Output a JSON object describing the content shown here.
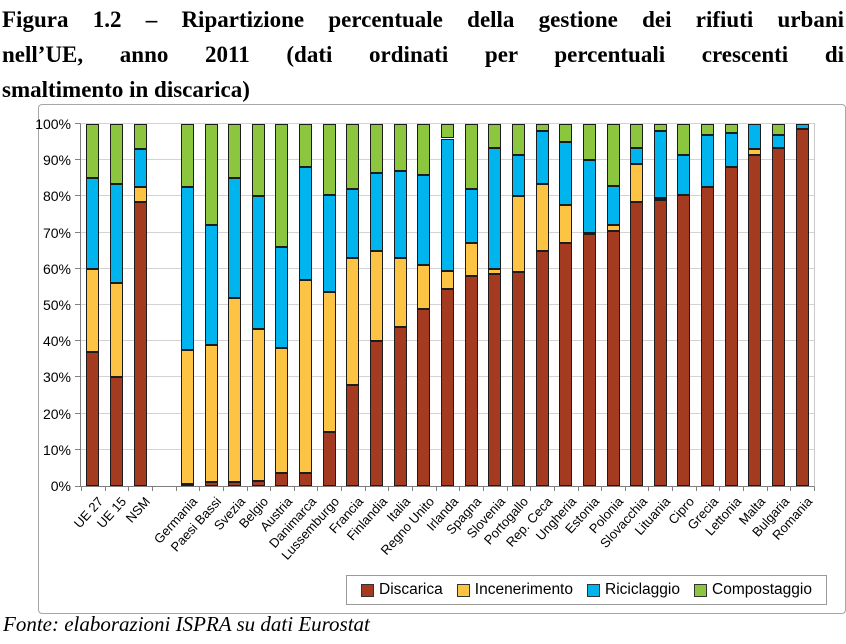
{
  "figure": {
    "title_lines": [
      "Figura 1.2 – Ripartizione percentuale della gestione dei rifiuti urbani",
      "nell’UE, anno 2011 (dati ordinati per percentuali crescenti di",
      "smaltimento in discarica)"
    ],
    "footer": "Fonte: elaborazioni ISPRA su dati Eurostat"
  },
  "chart_data": {
    "type": "bar",
    "stacked": true,
    "unit": "percent",
    "title": "Ripartizione percentuale della gestione dei rifiuti urbani nell'UE, anno 2011",
    "xlabel": "",
    "ylabel": "",
    "ylim": [
      0,
      100
    ],
    "grid": true,
    "legend_position": "bottom",
    "yticks": [
      "0%",
      "10%",
      "20%",
      "30%",
      "40%",
      "50%",
      "60%",
      "70%",
      "80%",
      "90%",
      "100%"
    ],
    "gap_after_category": "NSM",
    "categories": [
      "UE 27",
      "UE 15",
      "NSM",
      "Germania",
      "Paesi Bassi",
      "Svezia",
      "Belgio",
      "Austria",
      "Danimarca",
      "Lussemburgo",
      "Francia",
      "Finlandia",
      "Italia",
      "Regno Unito",
      "Irlanda",
      "Spagna",
      "Slovenia",
      "Portogallo",
      "Rep. Ceca",
      "Ungheria",
      "Estonia",
      "Polonia",
      "Slovacchia",
      "Lituania",
      "Cipro",
      "Grecia",
      "Lettonia",
      "Malta",
      "Bulgaria",
      "Romania"
    ],
    "series": [
      {
        "name": "Discarica",
        "color": "#A43B20",
        "values": [
          37,
          30,
          78.5,
          0.5,
          1,
          1,
          1.5,
          3.5,
          3.5,
          15,
          28,
          40,
          44,
          49,
          54.5,
          58,
          58.5,
          59,
          65,
          67,
          69.5,
          70.5,
          78.5,
          79,
          80.5,
          82.5,
          88,
          91.5,
          93.5,
          98.5
        ]
      },
      {
        "name": "Incenerimento",
        "color": "#FDC345",
        "values": [
          23,
          26,
          4,
          37,
          38,
          51,
          42,
          34.5,
          53.5,
          38.5,
          35,
          25,
          19,
          12,
          5,
          9,
          1.5,
          21,
          18.5,
          10.5,
          0.5,
          1.5,
          10.5,
          0.5,
          0,
          0,
          0,
          1.5,
          0,
          0
        ]
      },
      {
        "name": "Riciclaggio",
        "color": "#00B5ED",
        "values": [
          25,
          27.5,
          10.5,
          45,
          33,
          33,
          36.5,
          28,
          31,
          27,
          19,
          21.5,
          24,
          25,
          36.5,
          15,
          33.5,
          11.5,
          14.5,
          17.5,
          20,
          11,
          4.5,
          18.5,
          11,
          14.5,
          9.5,
          7,
          3.5,
          1.5
        ]
      },
      {
        "name": "Compostaggio",
        "color": "#8CC63F",
        "values": [
          15,
          16.5,
          7,
          17.5,
          28,
          15,
          20,
          34,
          12,
          19.5,
          18,
          13.5,
          13,
          14,
          4,
          18,
          6.5,
          8.5,
          2,
          5,
          10,
          17,
          6.5,
          2,
          8.5,
          3,
          2.5,
          0,
          3,
          0
        ]
      }
    ]
  }
}
